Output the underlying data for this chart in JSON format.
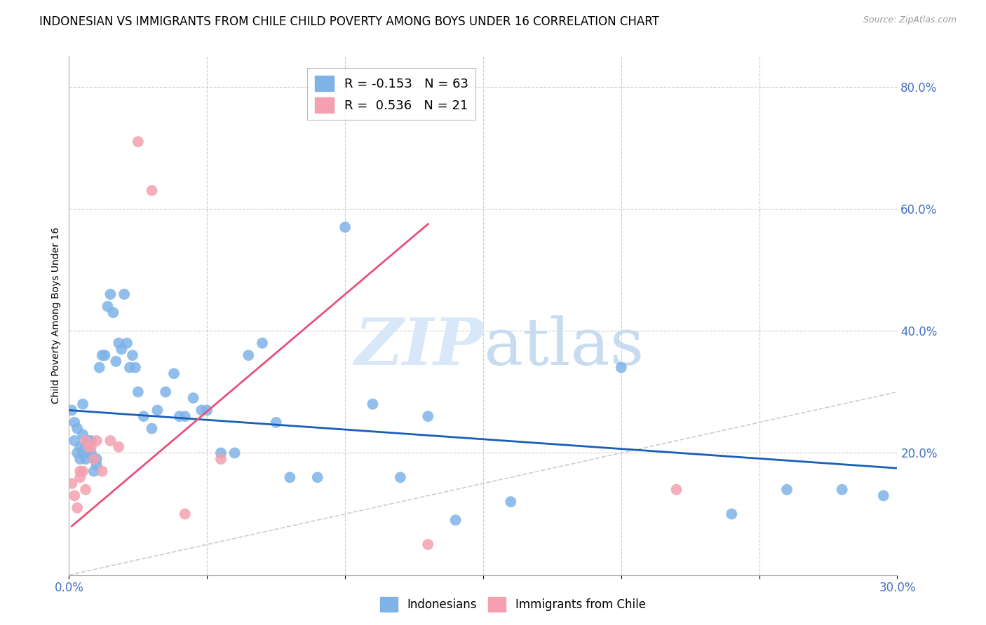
{
  "title": "INDONESIAN VS IMMIGRANTS FROM CHILE CHILD POVERTY AMONG BOYS UNDER 16 CORRELATION CHART",
  "source": "Source: ZipAtlas.com",
  "ylabel": "Child Poverty Among Boys Under 16",
  "xlim": [
    0.0,
    0.3
  ],
  "ylim": [
    0.0,
    0.85
  ],
  "x_ticks": [
    0.0,
    0.05,
    0.1,
    0.15,
    0.2,
    0.25,
    0.3
  ],
  "x_tick_labels": [
    "0.0%",
    "",
    "",
    "",
    "",
    "",
    "30.0%"
  ],
  "y_ticks": [
    0.0,
    0.2,
    0.4,
    0.6,
    0.8
  ],
  "y_tick_labels": [
    "",
    "20.0%",
    "40.0%",
    "60.0%",
    "80.0%"
  ],
  "legend1_label": "R = -0.153   N = 63",
  "legend2_label": "R =  0.536   N = 21",
  "color_indonesian": "#7EB3E8",
  "color_chile": "#F4A0B0",
  "color_trend_indonesian": "#1A5EB8",
  "color_trend_chile": "#E8507A",
  "color_diagonal": "#CCCCCC",
  "indonesian_x": [
    0.001,
    0.002,
    0.002,
    0.003,
    0.003,
    0.004,
    0.004,
    0.005,
    0.005,
    0.005,
    0.006,
    0.006,
    0.007,
    0.007,
    0.008,
    0.008,
    0.009,
    0.009,
    0.01,
    0.01,
    0.011,
    0.012,
    0.013,
    0.014,
    0.015,
    0.016,
    0.017,
    0.018,
    0.019,
    0.02,
    0.021,
    0.022,
    0.023,
    0.024,
    0.025,
    0.027,
    0.03,
    0.032,
    0.035,
    0.038,
    0.04,
    0.042,
    0.045,
    0.048,
    0.05,
    0.055,
    0.06,
    0.065,
    0.07,
    0.075,
    0.08,
    0.09,
    0.1,
    0.11,
    0.12,
    0.13,
    0.14,
    0.16,
    0.2,
    0.24,
    0.26,
    0.28,
    0.295
  ],
  "indonesian_y": [
    0.27,
    0.25,
    0.22,
    0.24,
    0.2,
    0.21,
    0.19,
    0.28,
    0.23,
    0.2,
    0.21,
    0.19,
    0.22,
    0.2,
    0.22,
    0.2,
    0.19,
    0.17,
    0.19,
    0.18,
    0.34,
    0.36,
    0.36,
    0.44,
    0.46,
    0.43,
    0.35,
    0.38,
    0.37,
    0.46,
    0.38,
    0.34,
    0.36,
    0.34,
    0.3,
    0.26,
    0.24,
    0.27,
    0.3,
    0.33,
    0.26,
    0.26,
    0.29,
    0.27,
    0.27,
    0.2,
    0.2,
    0.36,
    0.38,
    0.25,
    0.16,
    0.16,
    0.57,
    0.28,
    0.16,
    0.26,
    0.09,
    0.12,
    0.34,
    0.1,
    0.14,
    0.14,
    0.13
  ],
  "chile_x": [
    0.001,
    0.002,
    0.003,
    0.004,
    0.004,
    0.005,
    0.006,
    0.006,
    0.007,
    0.008,
    0.009,
    0.01,
    0.012,
    0.015,
    0.018,
    0.025,
    0.03,
    0.042,
    0.055,
    0.13,
    0.22
  ],
  "chile_y": [
    0.15,
    0.13,
    0.11,
    0.17,
    0.16,
    0.17,
    0.14,
    0.22,
    0.21,
    0.21,
    0.19,
    0.22,
    0.17,
    0.22,
    0.21,
    0.71,
    0.63,
    0.1,
    0.19,
    0.05,
    0.14
  ],
  "trend_indo_x0": 0.0,
  "trend_indo_x1": 0.3,
  "trend_indo_y0": 0.27,
  "trend_indo_y1": 0.175,
  "trend_chile_x0": 0.001,
  "trend_chile_x1": 0.13,
  "trend_chile_y0": 0.08,
  "trend_chile_y1": 0.575,
  "watermark_zip": "ZIP",
  "watermark_atlas": "atlas",
  "title_fontsize": 12,
  "axis_label_fontsize": 10,
  "tick_fontsize": 12,
  "tick_color": "#4472C4",
  "background_color": "#FFFFFF",
  "grid_color": "#CCCCCC"
}
